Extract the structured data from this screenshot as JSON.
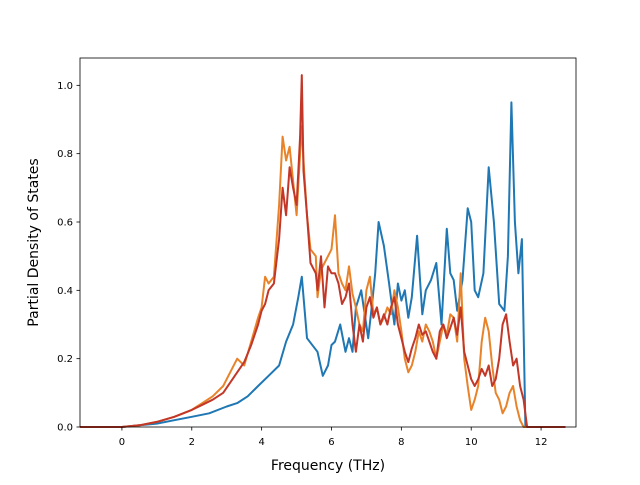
{
  "chart_data": {
    "type": "line",
    "xlabel": "Frequency (THz)",
    "ylabel": "Partial Density of States",
    "xlim": [
      -1.2,
      13.0
    ],
    "ylim": [
      0.0,
      1.08
    ],
    "x_ticks": [
      0,
      2,
      4,
      6,
      8,
      10,
      12
    ],
    "y_ticks": [
      0.0,
      0.2,
      0.4,
      0.6,
      0.8,
      1.0
    ],
    "x_tick_labels": [
      "0",
      "2",
      "4",
      "6",
      "8",
      "10",
      "12"
    ],
    "y_tick_labels": [
      "0.0",
      "0.2",
      "0.4",
      "0.6",
      "0.8",
      "1.0"
    ],
    "grid": false,
    "legend": "none",
    "series": [
      {
        "color": "#1f77b4",
        "x": [
          -1.2,
          0.0,
          0.5,
          1.0,
          1.5,
          2.0,
          2.5,
          3.0,
          3.3,
          3.6,
          3.9,
          4.2,
          4.5,
          4.7,
          4.9,
          5.05,
          5.15,
          5.3,
          5.6,
          5.75,
          5.9,
          6.0,
          6.1,
          6.25,
          6.4,
          6.5,
          6.6,
          6.7,
          6.85,
          6.95,
          7.05,
          7.15,
          7.25,
          7.35,
          7.5,
          7.65,
          7.8,
          7.9,
          8.0,
          8.1,
          8.2,
          8.3,
          8.45,
          8.6,
          8.7,
          8.85,
          9.0,
          9.15,
          9.3,
          9.4,
          9.5,
          9.6,
          9.75,
          9.9,
          10.0,
          10.1,
          10.2,
          10.35,
          10.5,
          10.65,
          10.8,
          10.95,
          11.05,
          11.15,
          11.25,
          11.35,
          11.45,
          11.55,
          11.7,
          12.7
        ],
        "values": [
          0.0,
          0.0,
          0.005,
          0.01,
          0.02,
          0.03,
          0.04,
          0.06,
          0.07,
          0.09,
          0.12,
          0.15,
          0.18,
          0.25,
          0.3,
          0.38,
          0.44,
          0.26,
          0.22,
          0.15,
          0.18,
          0.24,
          0.25,
          0.3,
          0.22,
          0.26,
          0.22,
          0.35,
          0.4,
          0.33,
          0.26,
          0.35,
          0.45,
          0.6,
          0.53,
          0.42,
          0.3,
          0.42,
          0.37,
          0.4,
          0.32,
          0.38,
          0.56,
          0.33,
          0.4,
          0.43,
          0.48,
          0.3,
          0.58,
          0.45,
          0.43,
          0.34,
          0.43,
          0.64,
          0.6,
          0.4,
          0.38,
          0.45,
          0.76,
          0.6,
          0.36,
          0.34,
          0.5,
          0.95,
          0.6,
          0.45,
          0.55,
          0.0,
          0.0,
          0.0
        ]
      },
      {
        "color": "#e8832a",
        "x": [
          -1.2,
          0.0,
          0.5,
          1.0,
          1.5,
          2.0,
          2.3,
          2.6,
          2.9,
          3.1,
          3.3,
          3.5,
          3.7,
          3.9,
          4.0,
          4.1,
          4.2,
          4.35,
          4.5,
          4.6,
          4.7,
          4.8,
          4.9,
          5.0,
          5.1,
          5.15,
          5.2,
          5.3,
          5.4,
          5.55,
          5.6,
          5.7,
          5.8,
          5.9,
          6.0,
          6.1,
          6.2,
          6.3,
          6.4,
          6.5,
          6.6,
          6.7,
          6.8,
          6.9,
          7.0,
          7.1,
          7.2,
          7.3,
          7.4,
          7.5,
          7.6,
          7.7,
          7.8,
          7.9,
          8.0,
          8.1,
          8.2,
          8.3,
          8.4,
          8.5,
          8.6,
          8.7,
          8.8,
          8.9,
          9.0,
          9.1,
          9.2,
          9.3,
          9.4,
          9.5,
          9.6,
          9.7,
          9.8,
          9.9,
          10.0,
          10.1,
          10.2,
          10.3,
          10.4,
          10.5,
          10.6,
          10.7,
          10.8,
          10.9,
          11.0,
          11.1,
          11.2,
          11.3,
          11.4,
          11.5,
          11.6,
          12.7
        ],
        "values": [
          0.0,
          0.0,
          0.005,
          0.015,
          0.03,
          0.05,
          0.07,
          0.09,
          0.12,
          0.16,
          0.2,
          0.18,
          0.25,
          0.32,
          0.35,
          0.44,
          0.42,
          0.44,
          0.65,
          0.85,
          0.78,
          0.82,
          0.72,
          0.62,
          0.8,
          0.88,
          0.78,
          0.62,
          0.52,
          0.5,
          0.38,
          0.46,
          0.48,
          0.5,
          0.52,
          0.62,
          0.45,
          0.42,
          0.4,
          0.47,
          0.39,
          0.35,
          0.3,
          0.28,
          0.4,
          0.44,
          0.33,
          0.35,
          0.3,
          0.32,
          0.35,
          0.33,
          0.4,
          0.35,
          0.28,
          0.2,
          0.16,
          0.18,
          0.22,
          0.28,
          0.25,
          0.3,
          0.28,
          0.25,
          0.2,
          0.25,
          0.3,
          0.27,
          0.33,
          0.32,
          0.25,
          0.45,
          0.2,
          0.12,
          0.05,
          0.08,
          0.12,
          0.25,
          0.32,
          0.28,
          0.18,
          0.1,
          0.08,
          0.04,
          0.06,
          0.1,
          0.12,
          0.06,
          0.02,
          0.0,
          0.0,
          0.0
        ]
      },
      {
        "color": "#c23728",
        "x": [
          -1.2,
          0.0,
          0.5,
          1.0,
          1.5,
          2.0,
          2.3,
          2.6,
          2.9,
          3.1,
          3.3,
          3.5,
          3.7,
          3.9,
          4.0,
          4.1,
          4.2,
          4.35,
          4.5,
          4.6,
          4.7,
          4.8,
          4.9,
          5.0,
          5.1,
          5.15,
          5.2,
          5.3,
          5.4,
          5.55,
          5.6,
          5.7,
          5.8,
          5.9,
          6.0,
          6.1,
          6.2,
          6.3,
          6.4,
          6.5,
          6.6,
          6.7,
          6.8,
          6.9,
          7.0,
          7.1,
          7.2,
          7.3,
          7.4,
          7.5,
          7.6,
          7.7,
          7.8,
          7.9,
          8.0,
          8.1,
          8.2,
          8.3,
          8.4,
          8.5,
          8.6,
          8.7,
          8.8,
          8.9,
          9.0,
          9.1,
          9.2,
          9.3,
          9.4,
          9.5,
          9.6,
          9.7,
          9.8,
          9.9,
          10.0,
          10.1,
          10.2,
          10.3,
          10.4,
          10.5,
          10.6,
          10.7,
          10.8,
          10.9,
          11.0,
          11.1,
          11.2,
          11.3,
          11.4,
          11.5,
          11.6,
          12.7
        ],
        "values": [
          0.0,
          0.0,
          0.005,
          0.015,
          0.03,
          0.05,
          0.065,
          0.08,
          0.1,
          0.13,
          0.16,
          0.19,
          0.24,
          0.3,
          0.34,
          0.36,
          0.4,
          0.42,
          0.55,
          0.7,
          0.62,
          0.76,
          0.7,
          0.65,
          0.85,
          1.03,
          0.75,
          0.62,
          0.48,
          0.45,
          0.4,
          0.5,
          0.35,
          0.47,
          0.45,
          0.45,
          0.42,
          0.36,
          0.38,
          0.42,
          0.3,
          0.22,
          0.3,
          0.25,
          0.35,
          0.38,
          0.32,
          0.35,
          0.3,
          0.33,
          0.3,
          0.35,
          0.38,
          0.3,
          0.26,
          0.22,
          0.19,
          0.23,
          0.26,
          0.3,
          0.27,
          0.28,
          0.25,
          0.22,
          0.2,
          0.28,
          0.3,
          0.26,
          0.29,
          0.32,
          0.27,
          0.35,
          0.22,
          0.18,
          0.14,
          0.12,
          0.14,
          0.17,
          0.15,
          0.18,
          0.12,
          0.14,
          0.2,
          0.3,
          0.33,
          0.25,
          0.18,
          0.2,
          0.12,
          0.08,
          0.0,
          0.0
        ]
      }
    ]
  }
}
